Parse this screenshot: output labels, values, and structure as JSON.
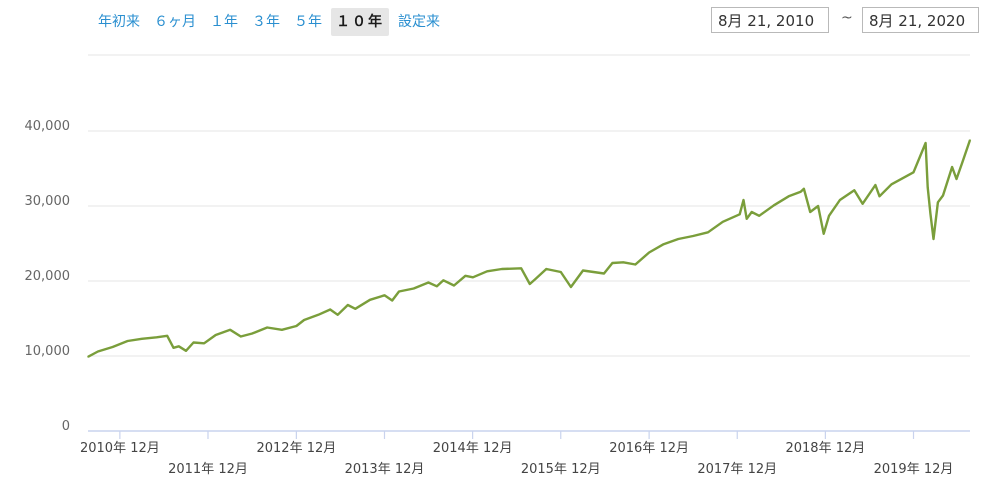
{
  "range_buttons": [
    {
      "label": "年初来",
      "active": false
    },
    {
      "label": "６ヶ月",
      "active": false
    },
    {
      "label": "１年",
      "active": false
    },
    {
      "label": "３年",
      "active": false
    },
    {
      "label": "５年",
      "active": false
    },
    {
      "label": "１０年",
      "active": true
    },
    {
      "label": "設定来",
      "active": false
    }
  ],
  "date_range": {
    "start": "8月 21, 2010",
    "separator": "~",
    "end": "8月 21, 2020"
  },
  "colors": {
    "line": "#7a9e3b",
    "grid": "#e6e6e6",
    "axis": "#c9d3ee",
    "active_button_bg": "#e6e6e6",
    "link": "#2a8fd0"
  },
  "chart_data": {
    "type": "line",
    "ylim": [
      0,
      40000
    ],
    "yticks": [
      0,
      10000,
      20000,
      30000,
      40000
    ],
    "ytick_labels": [
      "0",
      "10,000",
      "20,000",
      "30,000",
      "40,000"
    ],
    "x_range": [
      "2010-08-21",
      "2020-08-21"
    ],
    "xticks": [
      {
        "date": "2010-12-31",
        "label": "2010年 12月"
      },
      {
        "date": "2011-12-31",
        "label": "2011年 12月"
      },
      {
        "date": "2012-12-31",
        "label": "2012年 12月"
      },
      {
        "date": "2013-12-31",
        "label": "2013年 12月"
      },
      {
        "date": "2014-12-31",
        "label": "2014年 12月"
      },
      {
        "date": "2015-12-31",
        "label": "2015年 12月"
      },
      {
        "date": "2016-12-31",
        "label": "2016年 12月"
      },
      {
        "date": "2017-12-31",
        "label": "2017年 12月"
      },
      {
        "date": "2018-12-31",
        "label": "2018年 12月"
      },
      {
        "date": "2019-12-31",
        "label": "2019年 12月"
      }
    ],
    "series": [
      {
        "points": [
          [
            "2010-08-21",
            9900
          ],
          [
            "2010-10-01",
            10600
          ],
          [
            "2010-12-01",
            11200
          ],
          [
            "2011-02-01",
            12000
          ],
          [
            "2011-04-01",
            12300
          ],
          [
            "2011-06-01",
            12500
          ],
          [
            "2011-07-15",
            12700
          ],
          [
            "2011-08-10",
            11100
          ],
          [
            "2011-09-01",
            11300
          ],
          [
            "2011-10-01",
            10700
          ],
          [
            "2011-11-01",
            11800
          ],
          [
            "2011-12-15",
            11700
          ],
          [
            "2012-02-01",
            12800
          ],
          [
            "2012-04-01",
            13500
          ],
          [
            "2012-05-15",
            12600
          ],
          [
            "2012-07-01",
            13000
          ],
          [
            "2012-09-01",
            13800
          ],
          [
            "2012-11-01",
            13500
          ],
          [
            "2012-12-31",
            14000
          ],
          [
            "2013-02-01",
            14800
          ],
          [
            "2013-04-01",
            15500
          ],
          [
            "2013-05-20",
            16200
          ],
          [
            "2013-06-20",
            15500
          ],
          [
            "2013-08-01",
            16800
          ],
          [
            "2013-09-01",
            16300
          ],
          [
            "2013-11-01",
            17500
          ],
          [
            "2013-12-31",
            18100
          ],
          [
            "2014-02-01",
            17400
          ],
          [
            "2014-03-01",
            18600
          ],
          [
            "2014-05-01",
            19000
          ],
          [
            "2014-07-01",
            19800
          ],
          [
            "2014-08-05",
            19300
          ],
          [
            "2014-09-01",
            20100
          ],
          [
            "2014-10-15",
            19400
          ],
          [
            "2014-12-01",
            20700
          ],
          [
            "2015-01-01",
            20500
          ],
          [
            "2015-03-01",
            21300
          ],
          [
            "2015-05-01",
            21600
          ],
          [
            "2015-07-20",
            21700
          ],
          [
            "2015-08-25",
            19600
          ],
          [
            "2015-09-15",
            20200
          ],
          [
            "2015-11-01",
            21600
          ],
          [
            "2015-12-31",
            21200
          ],
          [
            "2016-02-11",
            19200
          ],
          [
            "2016-04-01",
            21400
          ],
          [
            "2016-06-27",
            21000
          ],
          [
            "2016-08-01",
            22400
          ],
          [
            "2016-09-15",
            22500
          ],
          [
            "2016-11-04",
            22200
          ],
          [
            "2016-12-31",
            23800
          ],
          [
            "2017-03-01",
            24900
          ],
          [
            "2017-05-01",
            25600
          ],
          [
            "2017-07-01",
            26000
          ],
          [
            "2017-09-01",
            26500
          ],
          [
            "2017-11-01",
            27900
          ],
          [
            "2018-01-10",
            28900
          ],
          [
            "2018-01-26",
            30800
          ],
          [
            "2018-02-08",
            28300
          ],
          [
            "2018-03-01",
            29200
          ],
          [
            "2018-04-01",
            28700
          ],
          [
            "2018-06-01",
            30100
          ],
          [
            "2018-08-01",
            31300
          ],
          [
            "2018-09-20",
            31900
          ],
          [
            "2018-10-03",
            32300
          ],
          [
            "2018-10-29",
            29200
          ],
          [
            "2018-12-01",
            30000
          ],
          [
            "2018-12-24",
            26300
          ],
          [
            "2019-01-15",
            28700
          ],
          [
            "2019-03-01",
            30800
          ],
          [
            "2019-04-30",
            32100
          ],
          [
            "2019-06-03",
            30300
          ],
          [
            "2019-07-26",
            32800
          ],
          [
            "2019-08-12",
            31300
          ],
          [
            "2019-10-01",
            32900
          ],
          [
            "2019-12-31",
            34500
          ],
          [
            "2020-02-19",
            38400
          ],
          [
            "2020-02-28",
            32500
          ],
          [
            "2020-03-10",
            29000
          ],
          [
            "2020-03-23",
            25600
          ],
          [
            "2020-04-10",
            30500
          ],
          [
            "2020-05-01",
            31400
          ],
          [
            "2020-06-08",
            35200
          ],
          [
            "2020-06-26",
            33600
          ],
          [
            "2020-07-20",
            35800
          ],
          [
            "2020-08-21",
            38800
          ]
        ]
      }
    ]
  }
}
